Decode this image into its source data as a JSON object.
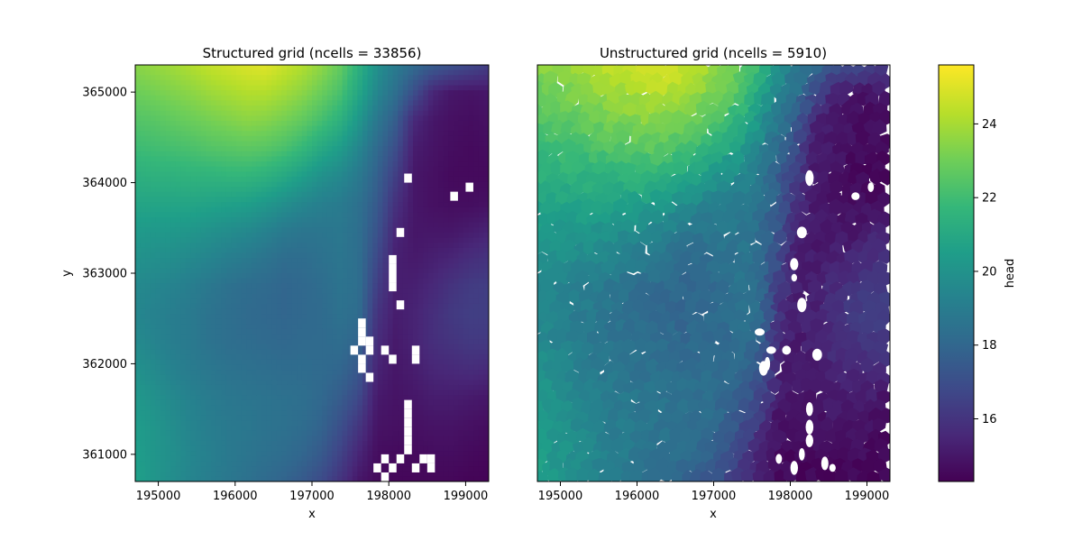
{
  "chart_data": [
    {
      "type": "heatmap",
      "title": "Structured grid (ncells = 33856)",
      "xlabel": "x",
      "ylabel": "y",
      "xlim": [
        194700,
        199300
      ],
      "ylim": [
        360700,
        365300
      ],
      "x_ticks": [
        "195000",
        "196000",
        "197000",
        "198000",
        "199000"
      ],
      "y_ticks": [
        "361000",
        "362000",
        "363000",
        "364000",
        "365000"
      ],
      "z_range": [
        14.3,
        25.6
      ],
      "colormap": "viridis",
      "field": [
        [
          23.6,
          23.8,
          24.0,
          24.3,
          24.6,
          24.8,
          25.0,
          25.1,
          24.7,
          24.3,
          23.7,
          22.9,
          21.5,
          20.0,
          19.0,
          18.2,
          17.6,
          17.2,
          16.8,
          16.4
        ],
        [
          23.0,
          23.2,
          23.4,
          23.6,
          23.9,
          24.1,
          24.3,
          24.3,
          24.0,
          23.6,
          23.0,
          22.3,
          21.0,
          19.5,
          18.4,
          17.0,
          15.5,
          15.0,
          14.9,
          15.0
        ],
        [
          22.5,
          22.6,
          22.8,
          23.0,
          23.2,
          23.4,
          23.6,
          23.5,
          23.2,
          22.8,
          22.2,
          21.5,
          20.3,
          18.8,
          17.6,
          15.6,
          15.0,
          14.8,
          14.7,
          14.8
        ],
        [
          22.0,
          22.1,
          22.2,
          22.3,
          22.5,
          22.6,
          22.7,
          22.6,
          22.3,
          21.8,
          21.1,
          20.5,
          19.5,
          18.2,
          17.0,
          15.2,
          14.9,
          14.7,
          14.6,
          14.7
        ],
        [
          21.4,
          21.5,
          21.5,
          21.6,
          21.6,
          21.7,
          21.7,
          21.5,
          21.1,
          20.6,
          20.0,
          19.6,
          18.9,
          17.8,
          16.4,
          15.0,
          14.8,
          14.6,
          14.6,
          14.6
        ],
        [
          20.9,
          20.9,
          20.9,
          20.9,
          20.8,
          20.7,
          20.6,
          20.3,
          19.9,
          19.5,
          19.2,
          19.0,
          18.5,
          17.5,
          15.9,
          15.0,
          14.8,
          14.7,
          14.7,
          14.8
        ],
        [
          20.4,
          20.3,
          20.3,
          20.2,
          20.0,
          19.8,
          19.6,
          19.3,
          18.9,
          18.7,
          18.7,
          18.8,
          18.4,
          17.2,
          15.5,
          15.0,
          15.0,
          15.0,
          15.2,
          15.4
        ],
        [
          20.0,
          19.9,
          19.8,
          19.6,
          19.4,
          19.1,
          18.9,
          18.6,
          18.3,
          18.3,
          18.5,
          18.7,
          18.4,
          16.8,
          15.3,
          15.1,
          15.3,
          15.5,
          15.8,
          16.0
        ],
        [
          19.6,
          19.5,
          19.3,
          19.1,
          18.8,
          18.5,
          18.3,
          18.2,
          18.0,
          18.1,
          18.3,
          18.6,
          18.4,
          16.4,
          15.2,
          15.3,
          15.6,
          16.0,
          16.3,
          16.4
        ],
        [
          19.5,
          19.3,
          19.1,
          18.9,
          18.6,
          18.4,
          18.2,
          18.1,
          18.0,
          18.1,
          18.2,
          18.5,
          18.3,
          16.0,
          15.2,
          15.4,
          15.8,
          16.2,
          16.4,
          16.4
        ],
        [
          19.7,
          19.4,
          19.1,
          18.9,
          18.6,
          18.4,
          18.3,
          18.2,
          18.1,
          18.2,
          18.2,
          18.3,
          17.9,
          15.7,
          15.1,
          15.4,
          15.8,
          16.0,
          16.2,
          16.2
        ],
        [
          20.0,
          19.7,
          19.3,
          19.0,
          18.8,
          18.6,
          18.5,
          18.4,
          18.3,
          18.3,
          18.2,
          18.0,
          17.4,
          15.4,
          15.0,
          15.2,
          15.5,
          15.6,
          15.7,
          15.6
        ],
        [
          20.3,
          20.0,
          19.6,
          19.3,
          19.0,
          18.8,
          18.7,
          18.6,
          18.5,
          18.4,
          18.1,
          17.6,
          16.8,
          15.1,
          14.9,
          15.0,
          15.2,
          15.2,
          15.1,
          15.0
        ],
        [
          20.5,
          20.2,
          19.8,
          19.4,
          19.1,
          18.9,
          18.8,
          18.6,
          18.5,
          18.3,
          17.9,
          17.1,
          16.1,
          14.9,
          14.8,
          14.8,
          14.9,
          14.9,
          14.8,
          14.7
        ],
        [
          20.6,
          20.2,
          19.9,
          19.5,
          19.2,
          18.9,
          18.7,
          18.5,
          18.3,
          18.0,
          17.5,
          16.6,
          15.5,
          14.7,
          14.6,
          14.6,
          14.7,
          14.7,
          14.6,
          14.5
        ],
        [
          20.7,
          20.2,
          19.8,
          19.4,
          19.1,
          18.8,
          18.5,
          18.2,
          17.9,
          17.5,
          16.9,
          16.0,
          15.0,
          14.6,
          14.5,
          14.5,
          14.5,
          14.5,
          14.4,
          14.4
        ]
      ],
      "dry_cells": [
        [
          198250,
          364050
        ],
        [
          199050,
          363950
        ],
        [
          198850,
          363850
        ],
        [
          198150,
          363450
        ],
        [
          198050,
          363150
        ],
        [
          198050,
          363050
        ],
        [
          198050,
          362950
        ],
        [
          198050,
          362850
        ],
        [
          198150,
          362650
        ],
        [
          197650,
          362450
        ],
        [
          197650,
          362350
        ],
        [
          197650,
          362250
        ],
        [
          197550,
          362150
        ],
        [
          197750,
          362250
        ],
        [
          197750,
          362150
        ],
        [
          197950,
          362150
        ],
        [
          198350,
          362150
        ],
        [
          198350,
          362050
        ],
        [
          197650,
          362050
        ],
        [
          198050,
          362050
        ],
        [
          197650,
          361950
        ],
        [
          197750,
          361850
        ],
        [
          198250,
          361550
        ],
        [
          198250,
          361450
        ],
        [
          198250,
          361350
        ],
        [
          198250,
          361250
        ],
        [
          198250,
          361150
        ],
        [
          198250,
          361050
        ],
        [
          198150,
          360950
        ],
        [
          197950,
          360950
        ],
        [
          198450,
          360950
        ],
        [
          198550,
          360950
        ],
        [
          197850,
          360850
        ],
        [
          198050,
          360850
        ],
        [
          198350,
          360850
        ],
        [
          198550,
          360850
        ],
        [
          197950,
          360750
        ]
      ]
    },
    {
      "type": "heatmap",
      "title": "Unstructured grid (ncells = 5910)",
      "xlabel": "x",
      "ylabel": "",
      "xlim": [
        194700,
        199300
      ],
      "ylim": [
        360700,
        365300
      ],
      "x_ticks": [
        "195000",
        "196000",
        "197000",
        "198000",
        "199000"
      ],
      "y_ticks": [],
      "z_range": [
        14.3,
        25.6
      ],
      "colormap": "viridis",
      "field_from": "same head field as structured grid, shown on irregular Voronoi cells",
      "dry_spots": [
        [
          198250,
          364050
        ],
        [
          199050,
          363950
        ],
        [
          198850,
          363850
        ],
        [
          198150,
          363450
        ],
        [
          198050,
          363100
        ],
        [
          198050,
          362950
        ],
        [
          198150,
          362650
        ],
        [
          197600,
          362350
        ],
        [
          197750,
          362150
        ],
        [
          197700,
          362000
        ],
        [
          197650,
          361950
        ],
        [
          197950,
          362150
        ],
        [
          198350,
          362100
        ],
        [
          198250,
          361500
        ],
        [
          198250,
          361300
        ],
        [
          198250,
          361150
        ],
        [
          197850,
          360950
        ],
        [
          198150,
          361000
        ],
        [
          198450,
          360900
        ],
        [
          198550,
          360850
        ],
        [
          198050,
          360850
        ]
      ]
    }
  ],
  "colorbar": {
    "label": "head",
    "ticks": [
      "16",
      "18",
      "20",
      "22",
      "24"
    ],
    "tick_values": [
      16,
      18,
      20,
      22,
      24
    ],
    "range": [
      14.3,
      25.6
    ],
    "colormap": "viridis"
  }
}
